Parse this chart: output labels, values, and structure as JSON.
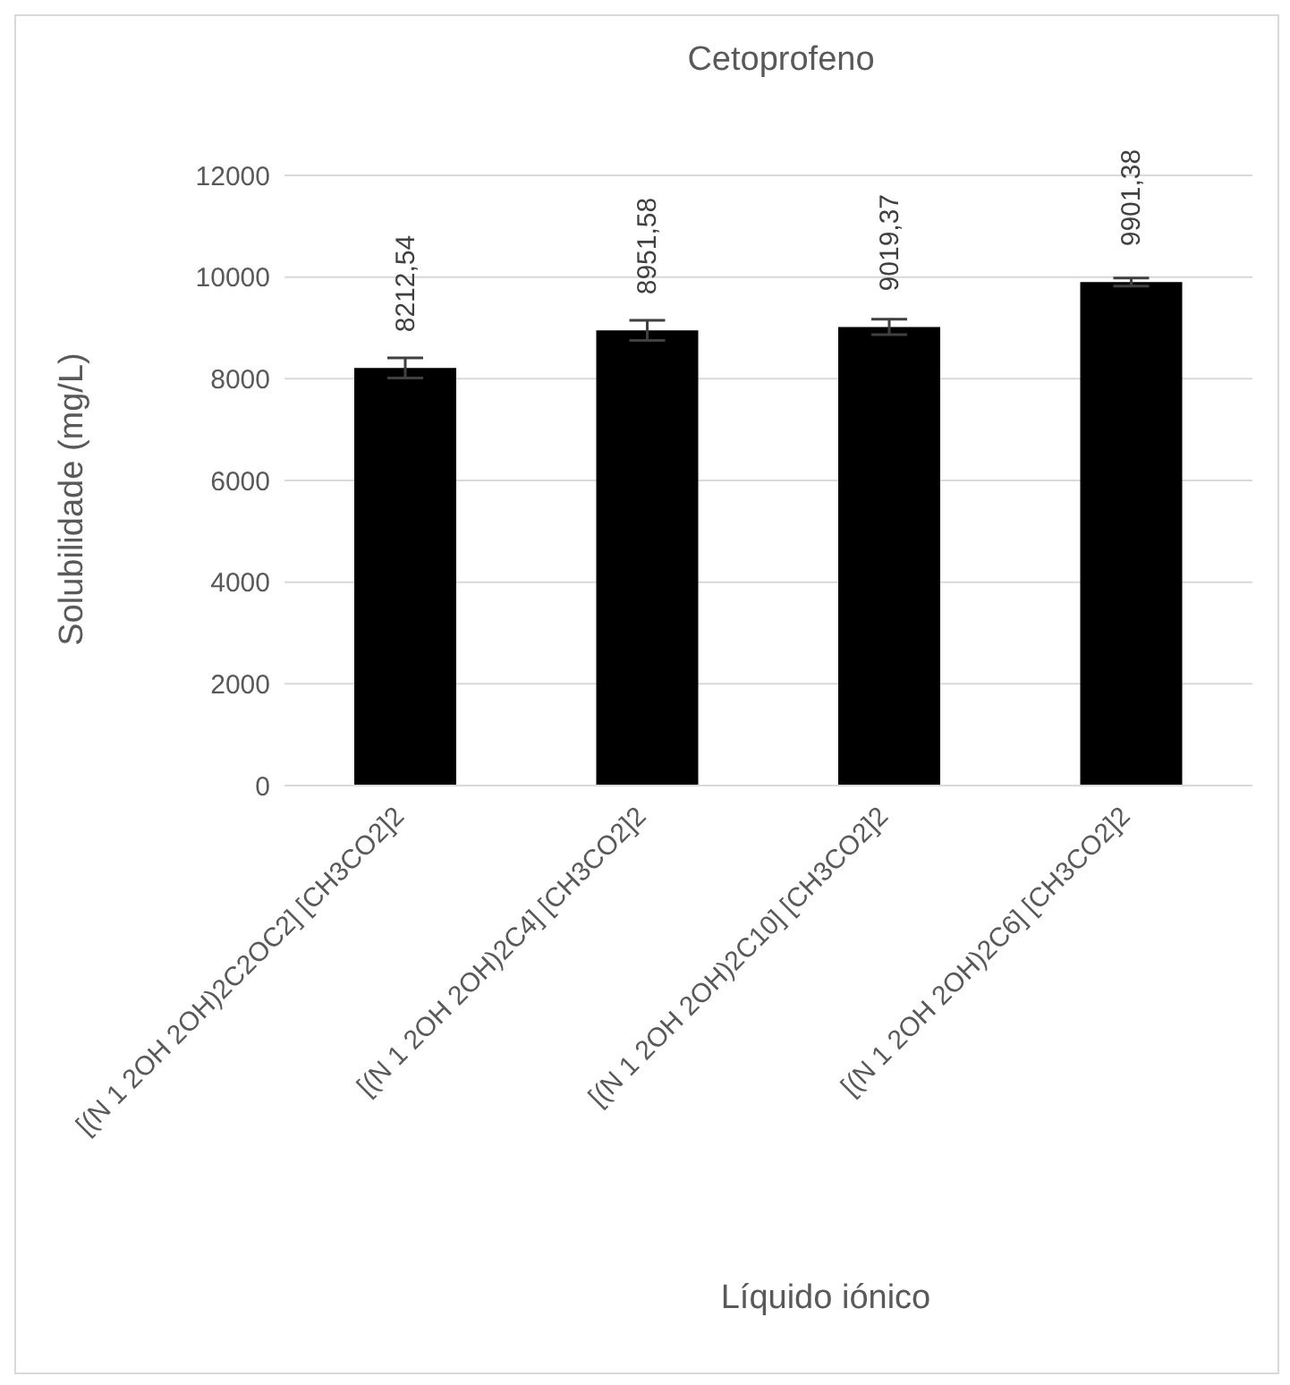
{
  "chart_data": {
    "type": "bar",
    "title": "Cetoprofeno",
    "xlabel": "Líquido iónico",
    "ylabel": "Solubilidade (mg/L)",
    "categories": [
      "[(N 1 2OH 2OH)2C2OC2] [CH3CO2]2",
      "[(N 1 2OH 2OH)2C4] [CH3CO2]2",
      "[(N 1 2OH 2OH)2C10] [CH3CO2]2",
      "[(N 1 2OH 2OH)2C6] [CH3CO2]2"
    ],
    "values": [
      8212.54,
      8951.58,
      9019.37,
      9901.38
    ],
    "errors": [
      200,
      200,
      150,
      80
    ],
    "color": "#000000",
    "value_labels": [
      "8212,54",
      "8951,58",
      "9019,37",
      "9901,38"
    ],
    "ylim": [
      0,
      12000
    ],
    "yticks": [
      0,
      2000,
      4000,
      6000,
      8000,
      10000,
      12000
    ],
    "grid": "y"
  }
}
